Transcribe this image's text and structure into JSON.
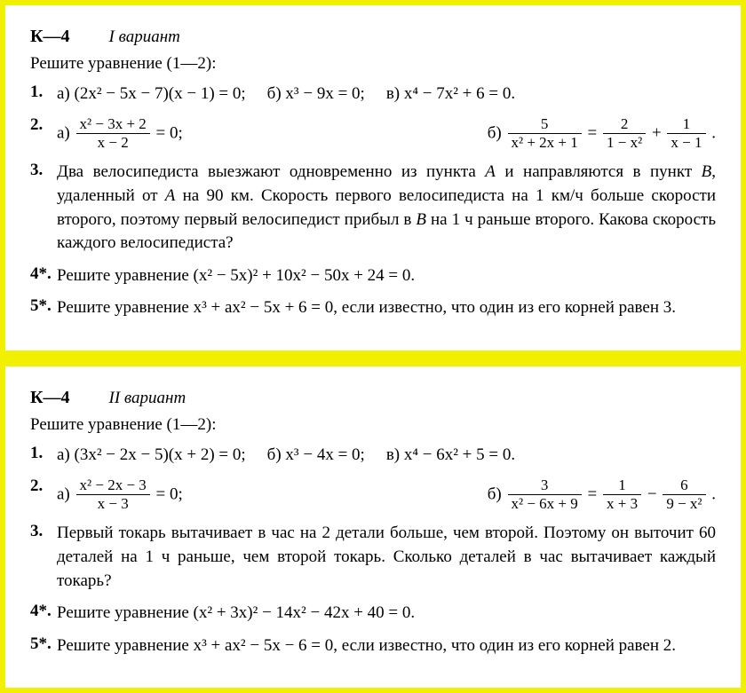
{
  "variant1": {
    "k_label": "К—4",
    "variant_label": "I вариант",
    "instruction": "Решите уравнение (1—2):",
    "p1": {
      "num": "1.",
      "a_label": "а)",
      "a_expr": "(2x² − 5x − 7)(x − 1) = 0;",
      "b_label": "б)",
      "b_expr": "x³ − 9x = 0;",
      "c_label": "в)",
      "c_expr": "x⁴ − 7x² + 6 = 0."
    },
    "p2": {
      "num": "2.",
      "a_label": "а)",
      "a_num": "x² − 3x + 2",
      "a_den": "x − 2",
      "a_tail": " = 0;",
      "b_label": "б)",
      "b1_num": "5",
      "b1_den": "x² + 2x + 1",
      "b_mid1": " = ",
      "b2_num": "2",
      "b2_den": "1 − x²",
      "b_mid2": " + ",
      "b3_num": "1",
      "b3_den": "x − 1",
      "b_tail": "."
    },
    "p3": {
      "num": "3.",
      "text_a": "Два велосипедиста выезжают одновременно из пункта ",
      "A": "A",
      "text_b": " и направляются в пункт ",
      "B": "B",
      "text_c": ", удаленный от ",
      "A2": "A",
      "text_d": " на 90 км. Скорость первого велосипедиста на 1 км/ч больше скорости второго, поэтому первый велосипедист прибыл в ",
      "B2": "B",
      "text_e": " на 1 ч раньше второго. Какова скорость каждого велосипедиста?"
    },
    "p4": {
      "num": "4*.",
      "text": "Решите уравнение (x² − 5x)² + 10x² − 50x + 24 = 0."
    },
    "p5": {
      "num": "5*.",
      "text_a": "Решите уравнение ",
      "expr": "x³ + ax² − 5x + 6 = 0",
      "text_b": ", если известно, что один из его корней равен 3."
    }
  },
  "variant2": {
    "k_label": "К—4",
    "variant_label": "II вариант",
    "instruction": "Решите уравнение (1—2):",
    "p1": {
      "num": "1.",
      "a_label": "а)",
      "a_expr": "(3x² − 2x − 5)(x + 2) = 0;",
      "b_label": "б)",
      "b_expr": "x³ − 4x = 0;",
      "c_label": "в)",
      "c_expr": "x⁴ − 6x² + 5 = 0."
    },
    "p2": {
      "num": "2.",
      "a_label": "а)",
      "a_num": "x² − 2x − 3",
      "a_den": "x − 3",
      "a_tail": " = 0;",
      "b_label": "б)",
      "b1_num": "3",
      "b1_den": "x² − 6x + 9",
      "b_mid1": " = ",
      "b2_num": "1",
      "b2_den": "x + 3",
      "b_mid2": " − ",
      "b3_num": "6",
      "b3_den": "9 − x²",
      "b_tail": "."
    },
    "p3": {
      "num": "3.",
      "text": "Первый токарь вытачивает в час на 2 детали больше, чем второй. Поэтому он выточит 60 деталей на 1 ч раньше, чем второй токарь. Сколько деталей в час вытачивает каждый токарь?"
    },
    "p4": {
      "num": "4*.",
      "text": "Решите уравнение (x² + 3x)² − 14x² − 42x + 40 = 0."
    },
    "p5": {
      "num": "5*.",
      "text_a": "Решите уравнение ",
      "expr": "x³ + ax² − 5x − 6 = 0",
      "text_b": ", если известно, что один из его корней равен 2."
    }
  }
}
